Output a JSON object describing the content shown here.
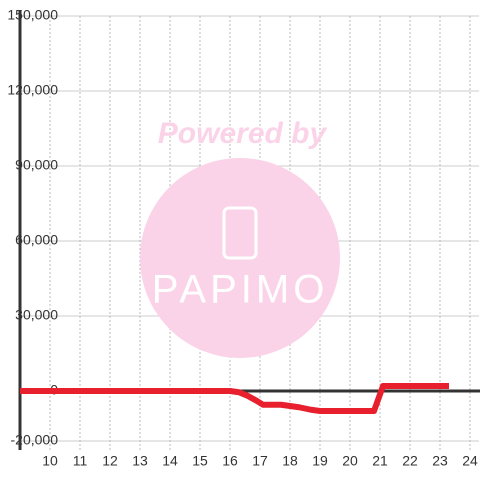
{
  "chart_data": {
    "type": "line",
    "watermark": {
      "title": "Powered by",
      "brand": "PAPIMO"
    },
    "x": [
      9,
      16,
      16.3,
      16.6,
      16.9,
      17.1,
      17.7,
      18,
      18.3,
      18.7,
      19,
      20,
      20.8,
      21.1,
      22,
      23.3
    ],
    "series": [
      {
        "color": "#e8202e",
        "values": [
          0,
          0,
          -500,
          -2000,
          -4000,
          -5500,
          -5500,
          -6000,
          -6500,
          -7500,
          -8000,
          -8000,
          -8000,
          2000,
          2000,
          2000
        ]
      }
    ],
    "xlim": [
      9,
      24.3
    ],
    "xticks": [
      10,
      11,
      12,
      13,
      14,
      15,
      16,
      17,
      18,
      19,
      20,
      21,
      22,
      23,
      24
    ],
    "ylim": [
      -20000,
      150000
    ],
    "yticks": [
      {
        "value": -20000,
        "label": "-20,000"
      },
      0,
      {
        "value": 30000,
        "label": "30,000"
      },
      {
        "value": 60000,
        "label": "60,000"
      },
      {
        "value": 90000,
        "label": "90,000"
      },
      {
        "value": 120000,
        "label": "120,000"
      },
      {
        "value": 150000,
        "label": "150,000"
      }
    ],
    "grid": true
  }
}
